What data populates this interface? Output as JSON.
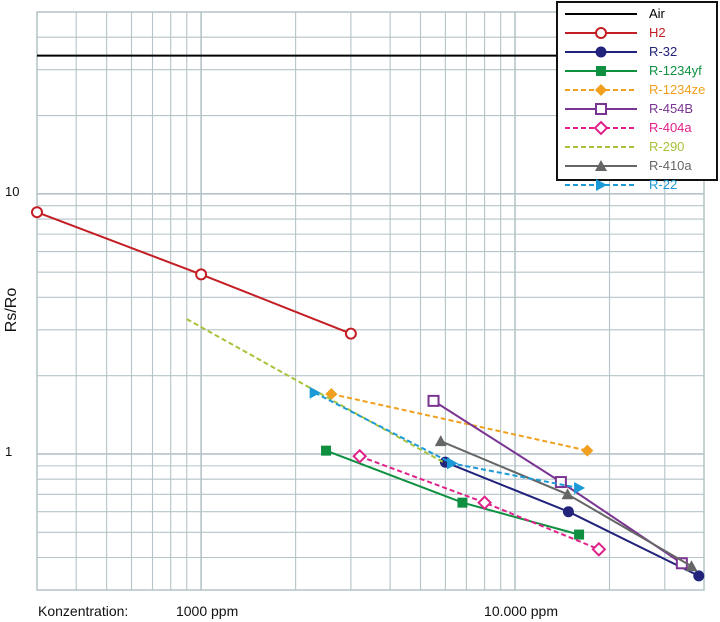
{
  "chart_data": {
    "type": "line",
    "title": "",
    "xlabel": "Konzentration:",
    "ylabel": "Rs/Ro",
    "x_scale": "log",
    "y_scale": "log",
    "xlim": [
      300,
      40000
    ],
    "ylim": [
      0.3,
      50
    ],
    "grid": true,
    "legend_position": "top-right",
    "x_tick_labels": [
      {
        "value": 1000,
        "label": "1000 ppm"
      },
      {
        "value": 10000,
        "label": "10.000 ppm"
      }
    ],
    "y_tick_labels": [
      {
        "value": 1,
        "label": "1"
      },
      {
        "value": 10,
        "label": "10"
      }
    ],
    "series": [
      {
        "name": "Air",
        "color": "#000000",
        "dash": "solid",
        "marker": "none",
        "x": [
          300,
          40000
        ],
        "y": [
          34,
          34
        ]
      },
      {
        "name": "H2",
        "color": "#c41e25",
        "dash": "solid",
        "marker": "circle-open",
        "x": [
          300,
          1000,
          3000
        ],
        "y": [
          8.5,
          4.9,
          2.9
        ]
      },
      {
        "name": "R-32",
        "color": "#22237a",
        "dash": "solid",
        "marker": "circle",
        "x": [
          6000,
          14800,
          38500
        ],
        "y": [
          0.93,
          0.6,
          0.34
        ]
      },
      {
        "name": "R-1234yf",
        "color": "#0e9040",
        "dash": "solid",
        "marker": "square",
        "x": [
          2500,
          6800,
          16000
        ],
        "y": [
          1.03,
          0.65,
          0.49
        ]
      },
      {
        "name": "R-1234ze",
        "color": "#f0a01e",
        "dash": "dash",
        "marker": "diamond",
        "x": [
          2600,
          17000
        ],
        "y": [
          1.7,
          1.03
        ]
      },
      {
        "name": "R-454B",
        "color": "#7a3592",
        "dash": "solid",
        "marker": "square-open",
        "x": [
          5500,
          14000,
          34000
        ],
        "y": [
          1.6,
          0.78,
          0.38
        ]
      },
      {
        "name": "R-404a",
        "color": "#e0218a",
        "dash": "dash",
        "marker": "diamond-open",
        "x": [
          3200,
          8000,
          18500
        ],
        "y": [
          0.98,
          0.65,
          0.43
        ]
      },
      {
        "name": "R-290",
        "color": "#a6c33a",
        "dash": "dash",
        "marker": "none",
        "x": [
          900,
          6000
        ],
        "y": [
          3.3,
          0.92
        ]
      },
      {
        "name": "R-410a",
        "color": "#666666",
        "dash": "solid",
        "marker": "triangle",
        "x": [
          5800,
          14700,
          36500
        ],
        "y": [
          1.12,
          0.7,
          0.37
        ]
      },
      {
        "name": "R-22",
        "color": "#1c9ad8",
        "dash": "dash",
        "marker": "triangle-right",
        "x": [
          2300,
          6300,
          16000
        ],
        "y": [
          1.72,
          0.92,
          0.74
        ]
      }
    ]
  }
}
